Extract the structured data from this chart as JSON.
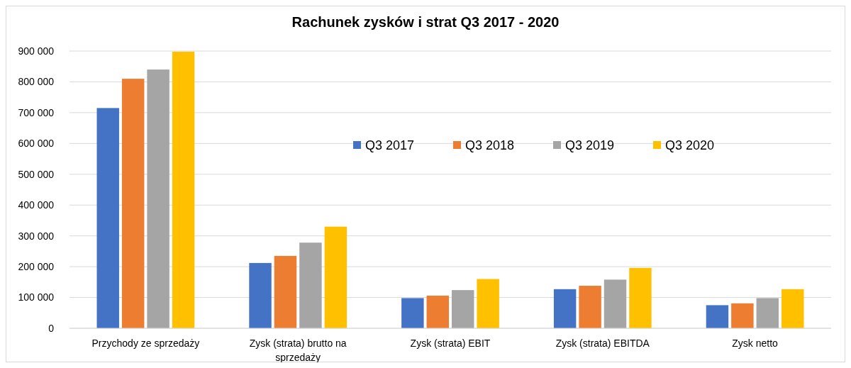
{
  "chart_data": {
    "type": "bar",
    "title": "Rachunek zysków i strat Q3 2017 - 2020",
    "categories": [
      "Przychody ze sprzedaży",
      "Zysk (strata) brutto na sprzedaży",
      "Zysk (strata) EBIT",
      "Zysk (strata) EBITDA",
      "Zysk netto"
    ],
    "series": [
      {
        "name": "Q3 2017",
        "color": "#4472c4",
        "values": [
          715000,
          212000,
          98000,
          127000,
          75000
        ]
      },
      {
        "name": "Q3 2018",
        "color": "#ed7d31",
        "values": [
          810000,
          235000,
          106000,
          138000,
          81000
        ]
      },
      {
        "name": "Q3 2019",
        "color": "#a5a5a5",
        "values": [
          840000,
          278000,
          124000,
          158000,
          98000
        ]
      },
      {
        "name": "Q3 2020",
        "color": "#ffc000",
        "values": [
          898000,
          330000,
          160000,
          196000,
          127000
        ]
      }
    ],
    "ylim": [
      0,
      900000
    ],
    "yticks": [
      0,
      {
        "value": 100000,
        "label": "100 000"
      },
      {
        "value": 200000,
        "label": "200 000"
      },
      {
        "value": 300000,
        "label": "300 000"
      },
      {
        "value": 400000,
        "label": "400 000"
      },
      {
        "value": 500000,
        "label": "500 000"
      },
      {
        "value": 600000,
        "label": "600 000"
      },
      {
        "value": 700000,
        "label": "700 000"
      },
      {
        "value": 800000,
        "label": "800 000"
      },
      {
        "value": 900000,
        "label": "900 000"
      }
    ],
    "grid": "y",
    "legend": "top right"
  }
}
